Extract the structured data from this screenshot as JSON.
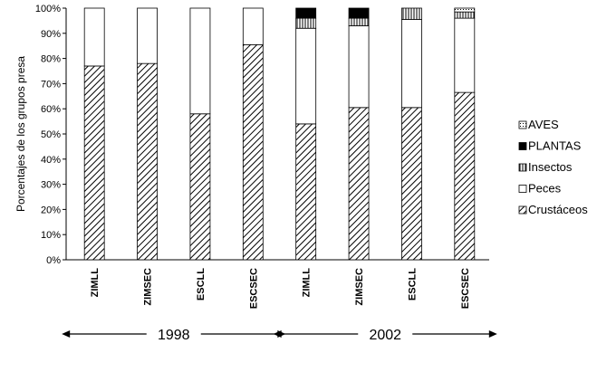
{
  "chart_data": {
    "type": "bar",
    "stacked": true,
    "percent": true,
    "ylabel": "Porcentajes de los grupos presa",
    "ylim": [
      0,
      100
    ],
    "yticks": [
      "0%",
      "10%",
      "20%",
      "30%",
      "40%",
      "50%",
      "60%",
      "70%",
      "80%",
      "90%",
      "100%"
    ],
    "categories": [
      "ZIMLL",
      "ZIMSEC",
      "ESCLL",
      "ESCSEC",
      "ZIMLL",
      "ZIMSEC",
      "ESCLL",
      "ESCSEC"
    ],
    "groups": [
      {
        "label": "1998",
        "start": 0,
        "end": 3
      },
      {
        "label": "2002",
        "start": 4,
        "end": 7
      }
    ],
    "legend_position": "right",
    "series": [
      {
        "name": "Crustáceos",
        "pattern": "hatch",
        "values": [
          77,
          78,
          58,
          85.5,
          54,
          60.5,
          60.5,
          66.5
        ]
      },
      {
        "name": "Peces",
        "pattern": "white",
        "values": [
          23,
          22,
          42,
          14.5,
          38,
          32.5,
          35,
          29.5
        ]
      },
      {
        "name": "Insectos",
        "pattern": "vertical-lines",
        "values": [
          0,
          0,
          0,
          0,
          4,
          3,
          4.5,
          2.5
        ]
      },
      {
        "name": "PLANTAS",
        "pattern": "black",
        "values": [
          0,
          0,
          0,
          0,
          4,
          4,
          0,
          0
        ]
      },
      {
        "name": "AVES",
        "pattern": "dots",
        "values": [
          0,
          0,
          0,
          0,
          0,
          0,
          0,
          1.5
        ]
      }
    ],
    "legend_order": [
      "AVES",
      "PLANTAS",
      "Insectos",
      "Peces",
      "Crustáceos"
    ]
  }
}
